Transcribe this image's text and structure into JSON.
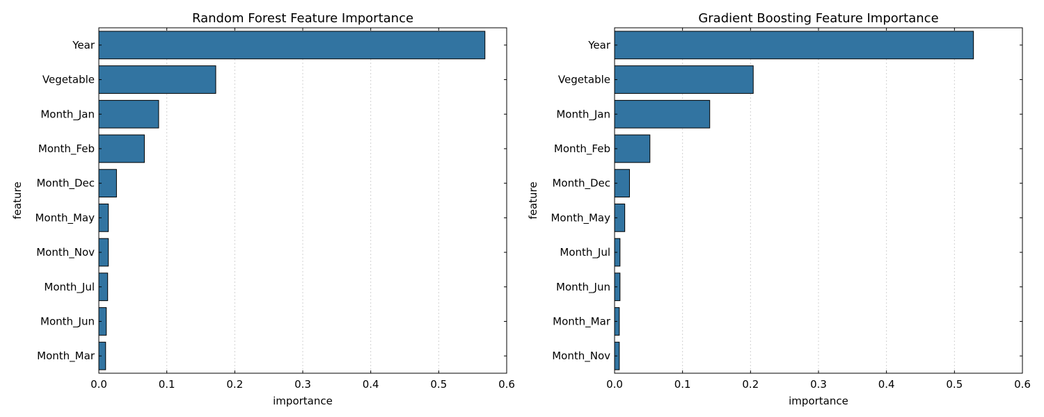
{
  "chart_data": [
    {
      "type": "bar",
      "orientation": "horizontal",
      "title": "Random Forest Feature Importance",
      "xlabel": "importance",
      "ylabel": "feature",
      "xlim": [
        0,
        0.6
      ],
      "xticks": [
        "0.0",
        "0.1",
        "0.2",
        "0.3",
        "0.4",
        "0.5",
        "0.6"
      ],
      "grid": "vertical dotted",
      "bar_color": "#3274a1",
      "categories": [
        "Year",
        "Vegetable",
        "Month_Jan",
        "Month_Feb",
        "Month_Dec",
        "Month_May",
        "Month_Nov",
        "Month_Jul",
        "Month_Jun",
        "Month_Mar"
      ],
      "values": [
        0.568,
        0.172,
        0.088,
        0.067,
        0.026,
        0.014,
        0.014,
        0.013,
        0.011,
        0.01
      ]
    },
    {
      "type": "bar",
      "orientation": "horizontal",
      "title": "Gradient Boosting Feature Importance",
      "xlabel": "importance",
      "ylabel": "feature",
      "xlim": [
        0,
        0.6
      ],
      "xticks": [
        "0.0",
        "0.1",
        "0.2",
        "0.3",
        "0.4",
        "0.5",
        "0.6"
      ],
      "grid": "vertical dotted",
      "bar_color": "#3274a1",
      "categories": [
        "Year",
        "Vegetable",
        "Month_Jan",
        "Month_Feb",
        "Month_Dec",
        "Month_May",
        "Month_Jul",
        "Month_Jun",
        "Month_Mar",
        "Month_Nov"
      ],
      "values": [
        0.528,
        0.204,
        0.14,
        0.052,
        0.022,
        0.015,
        0.008,
        0.008,
        0.007,
        0.007
      ]
    }
  ]
}
